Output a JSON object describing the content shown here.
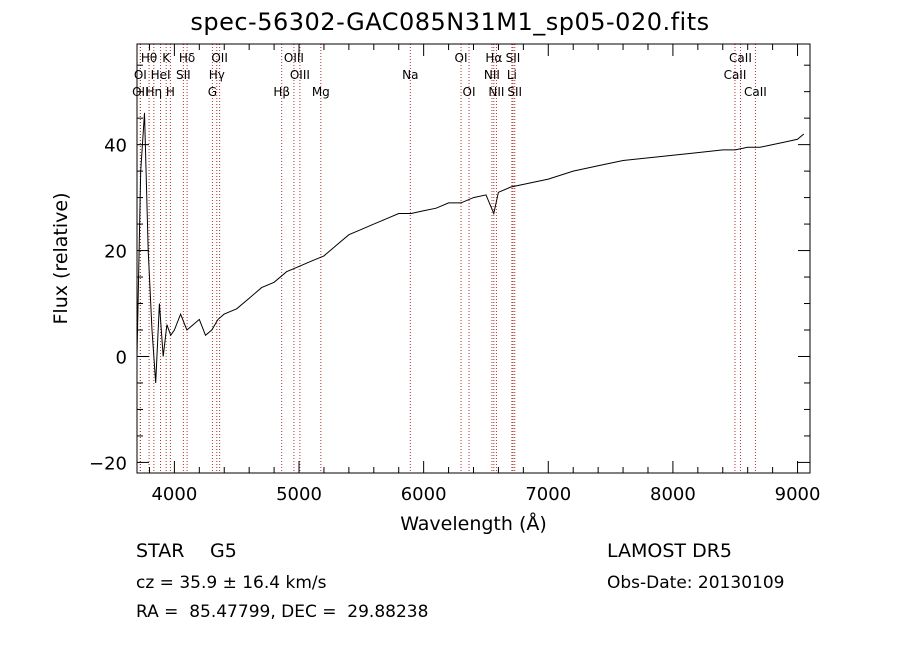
{
  "chart_data": {
    "type": "line",
    "title": "spec-56302-GAC085N31M1_sp05-020.fits",
    "xlabel": "Wavelength (Å)",
    "ylabel": "Flux (relative)",
    "xlim": [
      3700,
      9100
    ],
    "ylim": [
      -22,
      59
    ],
    "xticks": [
      4000,
      5000,
      6000,
      7000,
      8000,
      9000
    ],
    "xtick_labels": [
      "4000",
      "5000",
      "6000",
      "7000",
      "8000",
      "9000"
    ],
    "yticks": [
      -20,
      0,
      20,
      40
    ],
    "ytick_labels": [
      "−20",
      "0",
      "20",
      "40"
    ],
    "grid": false,
    "series": [
      {
        "color": "#000000",
        "x": [
          3700,
          3730,
          3760,
          3790,
          3820,
          3850,
          3880,
          3910,
          3940,
          3970,
          4000,
          4050,
          4100,
          4150,
          4200,
          4250,
          4300,
          4350,
          4400,
          4500,
          4600,
          4700,
          4800,
          4900,
          5000,
          5100,
          5200,
          5300,
          5400,
          5500,
          5600,
          5700,
          5800,
          5900,
          6000,
          6100,
          6200,
          6300,
          6400,
          6500,
          6563,
          6600,
          6700,
          6800,
          7000,
          7200,
          7400,
          7600,
          7800,
          8000,
          8200,
          8400,
          8500,
          8600,
          8700,
          8800,
          8900,
          9000,
          9050
        ],
        "y": [
          0,
          35,
          46,
          20,
          5,
          -5,
          10,
          0,
          6,
          4,
          5,
          8,
          5,
          6,
          7,
          4,
          5,
          7,
          8,
          9,
          11,
          13,
          14,
          16,
          17,
          18,
          19,
          21,
          23,
          24,
          25,
          26,
          27,
          27,
          27.5,
          28,
          29,
          29,
          30,
          30.5,
          27,
          31,
          32,
          32.5,
          33.5,
          35,
          36,
          37,
          37.5,
          38,
          38.5,
          39,
          39,
          39.5,
          39.5,
          40,
          40.5,
          41,
          42
        ]
      }
    ],
    "lines": [
      {
        "label": "Hθ",
        "x": 3797,
        "row": 1
      },
      {
        "label": "K",
        "x": 3934,
        "row": 1
      },
      {
        "label": "Hδ",
        "x": 4102,
        "row": 1
      },
      {
        "label": "OII",
        "x": 4363,
        "row": 1
      },
      {
        "label": "OIII",
        "x": 4959,
        "row": 1
      },
      {
        "label": "OI",
        "x": 6300,
        "row": 1
      },
      {
        "label": "Hα",
        "x": 6563,
        "row": 1
      },
      {
        "label": "SII",
        "x": 6717,
        "row": 1
      },
      {
        "label": "CaII",
        "x": 8542,
        "row": 1
      },
      {
        "label": "OI",
        "x": 3727,
        "row": 2
      },
      {
        "label": "HeI",
        "x": 3889,
        "row": 2
      },
      {
        "label": "SII",
        "x": 4072,
        "row": 2
      },
      {
        "label": "Hγ",
        "x": 4340,
        "row": 2
      },
      {
        "label": "OIII",
        "x": 5007,
        "row": 2
      },
      {
        "label": "Na",
        "x": 5893,
        "row": 2
      },
      {
        "label": "NII",
        "x": 6548,
        "row": 2
      },
      {
        "label": "Li",
        "x": 6708,
        "row": 2
      },
      {
        "label": "CaII",
        "x": 8498,
        "row": 2
      },
      {
        "label": "OII",
        "x": 3727,
        "row": 3
      },
      {
        "label": "Hη",
        "x": 3835,
        "row": 3
      },
      {
        "label": "H",
        "x": 3968,
        "row": 3
      },
      {
        "label": "G",
        "x": 4305,
        "row": 3
      },
      {
        "label": "Hβ",
        "x": 4861,
        "row": 3
      },
      {
        "label": "Mg",
        "x": 5175,
        "row": 3
      },
      {
        "label": "OI",
        "x": 6364,
        "row": 3
      },
      {
        "label": "NII",
        "x": 6584,
        "row": 3
      },
      {
        "label": "SII",
        "x": 6731,
        "row": 3
      },
      {
        "label": "CaII",
        "x": 8662,
        "row": 3
      }
    ],
    "annotations": {
      "object_class": "STAR",
      "subclass": "G5",
      "survey": "LAMOST DR5",
      "cz": "cz = 35.9 ± 16.4 km/s",
      "obs_date": "Obs-Date: 20130109",
      "coords": "RA =  85.47799, DEC =  29.88238"
    }
  }
}
